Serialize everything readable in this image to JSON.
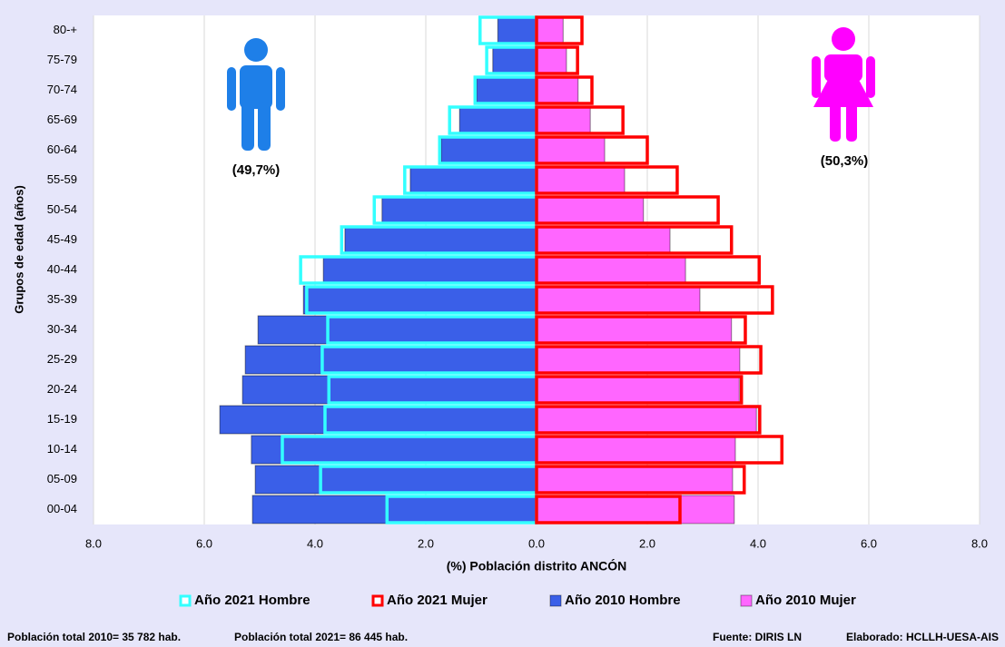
{
  "chart_data": {
    "type": "pyramid",
    "x_label": "(%) Población distrito ANCÓN",
    "y_label": "Grupos de edad (años)",
    "categories": [
      "00-04",
      "05-09",
      "10-14",
      "15-19",
      "20-24",
      "25-29",
      "30-34",
      "35-39",
      "40-44",
      "45-49",
      "50-54",
      "55-59",
      "60-64",
      "65-69",
      "70-74",
      "75-79",
      "80-+"
    ],
    "series": [
      {
        "name": "Año 2021 Hombre",
        "color": "#33ffff",
        "side": "left",
        "style": "outline",
        "values": [
          2.7,
          3.9,
          4.59,
          3.82,
          3.75,
          3.87,
          3.77,
          4.15,
          4.26,
          3.52,
          2.93,
          2.38,
          1.75,
          1.57,
          1.11,
          0.9,
          1.02
        ]
      },
      {
        "name": "Año 2021 Mujer",
        "color": "#ff0000",
        "side": "right",
        "style": "outline",
        "values": [
          2.59,
          3.75,
          4.43,
          4.03,
          3.7,
          4.05,
          3.77,
          4.26,
          4.02,
          3.52,
          3.28,
          2.54,
          2.0,
          1.56,
          1.0,
          0.74,
          0.82
        ]
      },
      {
        "name": "Año 2010 Hombre",
        "color": "#3a5fe8",
        "side": "left",
        "style": "fill",
        "values": [
          5.13,
          5.08,
          5.15,
          5.72,
          5.31,
          5.26,
          5.03,
          4.21,
          3.85,
          3.46,
          2.79,
          2.28,
          1.72,
          1.39,
          1.08,
          0.79,
          0.7
        ]
      },
      {
        "name": "Año 2010 Mujer",
        "color": "#ff66ff",
        "side": "right",
        "style": "fill",
        "values": [
          3.57,
          3.54,
          3.59,
          3.97,
          3.66,
          3.67,
          3.52,
          2.95,
          2.69,
          2.41,
          1.93,
          1.59,
          1.23,
          0.97,
          0.75,
          0.54,
          0.48
        ]
      }
    ],
    "xlim": [
      -8,
      8
    ],
    "xticks": [
      {
        "value": -8,
        "label": "8.0"
      },
      {
        "value": -6,
        "label": "6.0"
      },
      {
        "value": -4,
        "label": "4.0"
      },
      {
        "value": -2,
        "label": "2.0"
      },
      {
        "value": 0,
        "label": "0.0"
      },
      {
        "value": 2,
        "label": "2.0"
      },
      {
        "value": 4,
        "label": "4.0"
      },
      {
        "value": 6,
        "label": "6.0"
      },
      {
        "value": 8,
        "label": "8.0"
      }
    ],
    "grid": true,
    "annotations": {
      "male_share": "(49,7%)",
      "female_share": "(50,3%)"
    },
    "footer": {
      "pop_2010": "Población total 2010= 35 782 hab.",
      "pop_2021": "Población total 2021= 86 445 hab.",
      "source": "Fuente: DIRIS LN",
      "author": "Elaborado: HCLLH-UESA-AIS"
    }
  }
}
